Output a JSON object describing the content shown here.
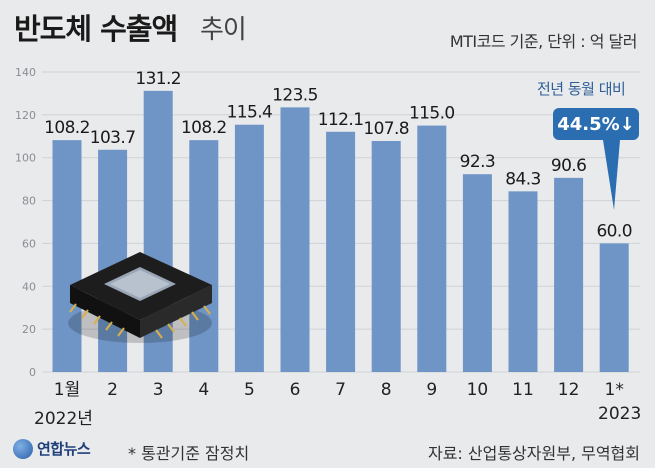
{
  "header": {
    "title": "반도체 수출액",
    "title_suffix": "추이",
    "unit": "MTI코드 기준, 단위 : 억 달러"
  },
  "callout": {
    "label": "전년 동월 대비",
    "value": "44.5%↓"
  },
  "year_labels": {
    "left": "2022년",
    "right": "2023"
  },
  "footer": {
    "logo": "연합뉴스",
    "footnote": "* 통관기준 잠정치",
    "source": "자료: 산업통상자원부, 무역협회"
  },
  "colors": {
    "bar": "#6f95c6",
    "background": "#e9eaec",
    "callout": "#2a6db0"
  },
  "chart_data": {
    "type": "bar",
    "title": "반도체 수출액 추이",
    "categories": [
      "1월",
      "2",
      "3",
      "4",
      "5",
      "6",
      "7",
      "8",
      "9",
      "10",
      "11",
      "12",
      "1*"
    ],
    "values": [
      108.2,
      103.7,
      131.2,
      108.2,
      115.4,
      123.5,
      112.1,
      107.8,
      115.0,
      92.3,
      84.3,
      90.6,
      60.0
    ],
    "value_labels": [
      "108.2",
      "103.7",
      "131.2",
      "108.2",
      "115.4",
      "123.5",
      "112.1",
      "107.8",
      "115.0",
      "92.3",
      "84.3",
      "90.6",
      "60.0"
    ],
    "y_ticks": [
      "0",
      "20",
      "40",
      "60",
      "80",
      "100",
      "120",
      "140"
    ],
    "ylim": [
      0,
      140
    ],
    "grid": true,
    "legend": "none"
  }
}
